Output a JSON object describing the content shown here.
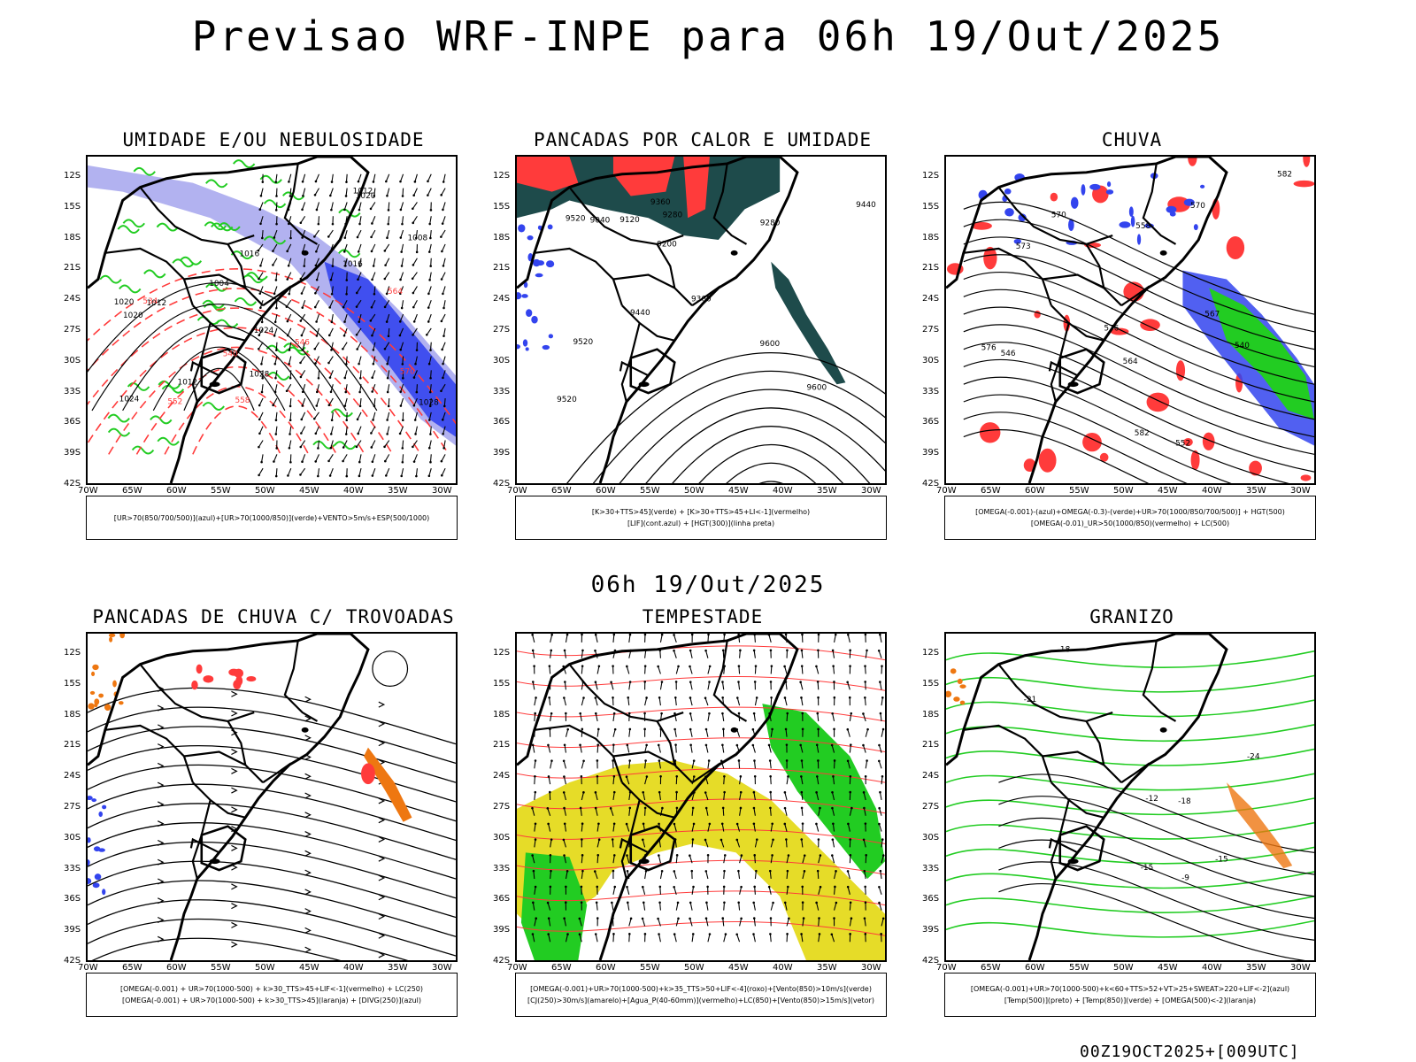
{
  "header": {
    "title": "Previsao WRF-INPE  para 06h 19/Out/2025",
    "mid_time": "06h 19/Out/2025",
    "footer": "00Z19OCT2025+[009UTC]"
  },
  "axes": {
    "lat_labels": [
      "12S",
      "15S",
      "18S",
      "21S",
      "24S",
      "27S",
      "30S",
      "33S",
      "36S",
      "39S",
      "42S"
    ],
    "lon_labels": [
      "70W",
      "65W",
      "60W",
      "55W",
      "50W",
      "45W",
      "40W",
      "35W",
      "30W"
    ]
  },
  "panels": [
    {
      "title": "UMIDADE E/OU NEBULOSIDADE",
      "legend": [
        "[UR>70(850/700/500)](azul)+[UR>70(1000/850)](verde)+VENTO>5m/s+ESP(500/1000)"
      ],
      "labels": [
        "1012",
        "1012",
        "1012",
        "1016",
        "1020",
        "1016",
        "1020",
        "1024",
        "1024",
        "1028",
        "1020",
        "1028",
        "1008",
        "1004",
        "570",
        "564",
        "558",
        "552",
        "546",
        "540",
        "534"
      ],
      "theme": "umidade"
    },
    {
      "title": "PANCADAS POR CALOR E UMIDADE",
      "legend": [
        "[K>30+TTS>45](verde) + [K>30+TTS>45+LI<-1](vermelho)",
        "[LIF](cont.azul) + [HGT(300)](linha preta)"
      ],
      "labels": [
        "9600",
        "9600",
        "9520",
        "9440",
        "9360",
        "9280",
        "9200",
        "9120",
        "9040",
        "9440",
        "9360",
        "9280",
        "9520",
        "9520"
      ],
      "theme": "pancadas"
    },
    {
      "title": "CHUVA",
      "legend": [
        "[OMEGA(-0.001)-(azul)+OMEGA(-0.3)-(verde)+UR>70(1000/850/700/500)] + HGT(500)",
        "[OMEGA(-0.01)_UR>50(1000/850)(vermelho) + LC(500)"
      ],
      "labels": [
        "582",
        "582",
        "576",
        "570",
        "564",
        "558",
        "552",
        "546",
        "540",
        "576",
        "573",
        "570",
        "567"
      ],
      "theme": "chuva"
    },
    {
      "title": "PANCADAS DE CHUVA C/ TROVOADAS",
      "legend": [
        "[OMEGA(-0.001) + UR>70(1000-500) + k>30_TTS>45+LIF<-1](vermelho) + LC(250)",
        "[OMEGA(-0.001) + UR>70(1000-500) + k>30_TTS>45](laranja) + [DIVG(250)](azul)"
      ],
      "labels": [],
      "theme": "trovoadas"
    },
    {
      "title": "TEMPESTADE",
      "legend": [
        "[OMEGA(-0.001)+UR>70(1000-500)+k>35_TTS>50+LIF<-4](roxo)+[Vento(850)>10m/s](verde)",
        "[CJ(250)>30m/s](amarelo)+[Agua_P(40-60mm)](vermelho)+LC(850)+[Vento(850)>15m/s](vetor)"
      ],
      "labels": [],
      "theme": "tempestade"
    },
    {
      "title": "GRANIZO",
      "legend": [
        "[OMEGA(-0.001)+UR>70(1000-500)+k<60+TTS>52+VT>25+SWEAT>220+LIF<-2](azul)",
        "[Temp(500)](preto) + [Temp(850)](verde) + [OMEGA(500)<-2](laranja)"
      ],
      "labels": [
        "-12",
        "-15",
        "-18",
        "-15",
        "-18",
        "-21",
        "-24",
        "-9"
      ],
      "theme": "granizo"
    }
  ],
  "colors": {
    "blue": "#3344ee",
    "lightblue": "#aaaaee",
    "green": "#22cc22",
    "red": "#ff3b3b",
    "darkteal": "#1e4b4b",
    "orange": "#ee7711",
    "yellow": "#e6dc28"
  }
}
